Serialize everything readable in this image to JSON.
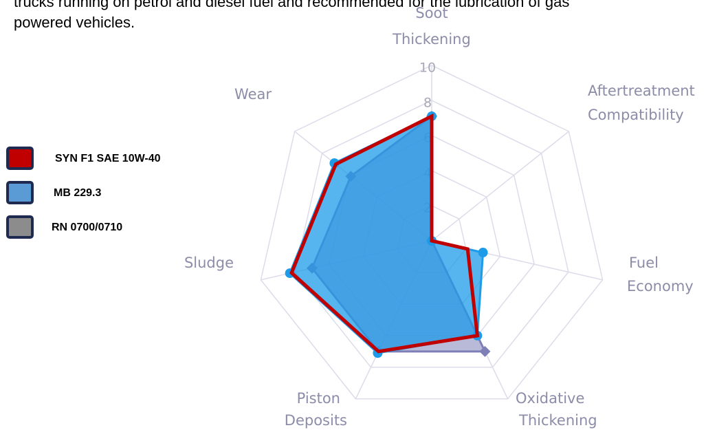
{
  "intro": [
    "trucks running on petrol and diesel fuel and recommended for the lubrication of gas",
    "powered vehicles."
  ],
  "chart_data": {
    "type": "radar",
    "categories": [
      [
        "Soot",
        "Thickening"
      ],
      [
        "Aftertreatment",
        "Compatibility"
      ],
      [
        "Fuel",
        "Economy"
      ],
      [
        "Oxidative",
        "Thickening"
      ],
      [
        "Piston",
        "Deposits"
      ],
      [
        "Sludge"
      ],
      [
        "Wear"
      ]
    ],
    "ylim": [
      0,
      10
    ],
    "yticks": [
      2,
      4,
      6,
      8,
      10
    ],
    "grid": true,
    "series": [
      {
        "name": "RN 0700/0710",
        "color": "#7f7fb8",
        "values": [
          7.1,
          0,
          0,
          7.0,
          7.0,
          7.0,
          5.9
        ]
      },
      {
        "name": "MB 229.3",
        "color": "#1e9be8",
        "values": [
          7.1,
          0,
          3.0,
          6.0,
          7.1,
          8.3,
          7.1
        ]
      },
      {
        "name": "SYN F1 SAE 10W-40",
        "color": "#c00000",
        "values": [
          7.1,
          0,
          2.1,
          6.0,
          7.0,
          8.2,
          7.0
        ]
      }
    ]
  }
}
